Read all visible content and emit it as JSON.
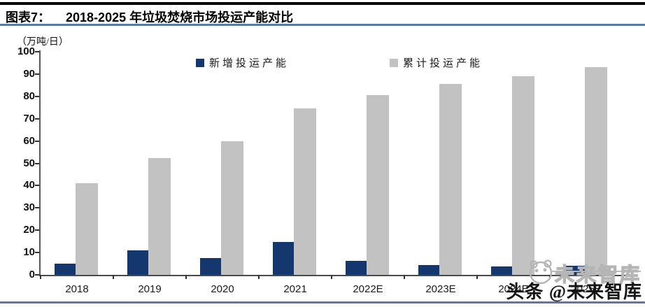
{
  "header": {
    "figure_label": "图表7：",
    "title": "2018-2025 年垃圾焚烧市场投运产能对比"
  },
  "chart_data": {
    "type": "bar",
    "title": "2018-2025 年垃圾焚烧市场投运产能对比",
    "unit_label": "（万吨/日）",
    "xlabel": "",
    "ylabel": "万吨/日",
    "categories": [
      "2018",
      "2019",
      "2020",
      "2021",
      "2022E",
      "2023E",
      "2024E",
      "2025E"
    ],
    "series": [
      {
        "name": "新增投运产能",
        "color": "#14386e",
        "values": [
          5,
          11,
          7.5,
          14.7,
          6.2,
          4.5,
          3.8,
          4
        ]
      },
      {
        "name": "累计投运产能",
        "color": "#c2c2c2",
        "values": [
          41,
          52.5,
          60,
          74.5,
          80.7,
          85.5,
          89,
          93
        ]
      }
    ],
    "ylim": [
      0,
      100
    ],
    "ytick_step": 10,
    "grid": false,
    "legend_position": "top"
  },
  "watermark": {
    "logo_text": "未来智库",
    "byline": "头条 @未来智库",
    "logo_icon": "cartoon-face-icon"
  },
  "colors": {
    "accent_rule": "#5a7ba6",
    "top_rule": "#000000",
    "axis": "#4a4a4a",
    "bar_new": "#14386e",
    "bar_cumulative": "#c2c2c2",
    "watermark_gray": "#b5b5b5"
  }
}
